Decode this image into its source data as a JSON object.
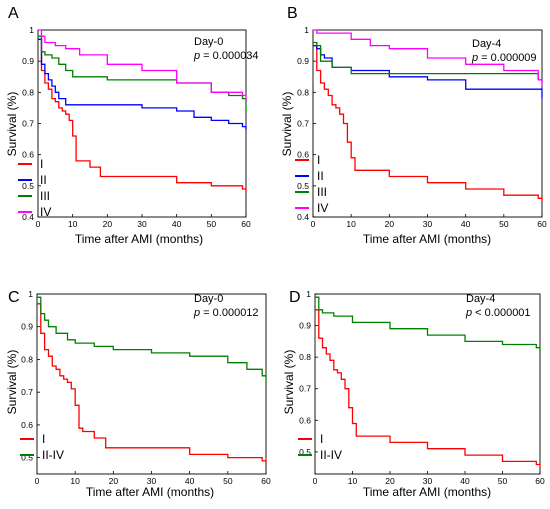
{
  "chart_data": [
    {
      "panel": "A",
      "type": "line",
      "title": "",
      "annotation": {
        "line1": "Day-0",
        "p_prefix": "p",
        "p_value": " = 0.000034"
      },
      "xlabel": "Time after AMI (months)",
      "ylabel": "Survival (%)",
      "xlim": [
        0,
        60
      ],
      "ylim": [
        0.4,
        1.0
      ],
      "xticks": [
        "0",
        "10",
        "20",
        "30",
        "40",
        "50",
        "60"
      ],
      "yticks": [
        "0.4",
        "0.5",
        "0.6",
        "0.7",
        "0.8",
        "0.9",
        "1"
      ],
      "legend_position": "bottom-left",
      "series": [
        {
          "name": "I",
          "color": "#ff0000",
          "x": [
            0,
            1,
            2,
            3,
            4,
            5,
            6,
            7,
            8,
            9,
            10,
            11,
            12,
            15,
            18,
            20,
            30,
            40,
            50,
            59,
            60
          ],
          "y": [
            0.97,
            0.87,
            0.83,
            0.81,
            0.78,
            0.77,
            0.75,
            0.74,
            0.73,
            0.71,
            0.66,
            0.58,
            0.58,
            0.56,
            0.53,
            0.53,
            0.53,
            0.51,
            0.5,
            0.49,
            0.48
          ]
        },
        {
          "name": "II",
          "color": "#0000ff",
          "x": [
            0,
            1,
            2,
            3,
            4,
            5,
            6,
            8,
            20,
            30,
            40,
            45,
            50,
            55,
            59,
            60
          ],
          "y": [
            0.97,
            0.89,
            0.86,
            0.84,
            0.82,
            0.8,
            0.78,
            0.76,
            0.76,
            0.75,
            0.74,
            0.72,
            0.71,
            0.7,
            0.69,
            0.68
          ]
        },
        {
          "name": "III",
          "color": "#008000",
          "x": [
            0,
            1,
            2,
            4,
            6,
            8,
            10,
            15,
            20,
            30,
            40,
            50,
            55,
            59,
            60
          ],
          "y": [
            0.98,
            0.93,
            0.92,
            0.91,
            0.89,
            0.87,
            0.85,
            0.85,
            0.84,
            0.84,
            0.83,
            0.8,
            0.79,
            0.78,
            0.74
          ]
        },
        {
          "name": "IV",
          "color": "#ff00ff",
          "x": [
            0,
            1,
            2,
            5,
            8,
            12,
            20,
            30,
            40,
            50,
            59,
            60
          ],
          "y": [
            1.0,
            0.98,
            0.96,
            0.95,
            0.94,
            0.92,
            0.89,
            0.87,
            0.83,
            0.8,
            0.79,
            0.77
          ]
        }
      ]
    },
    {
      "panel": "B",
      "type": "line",
      "title": "",
      "annotation": {
        "line1": "Day-4",
        "p_prefix": "p",
        "p_value": " = 0.000009"
      },
      "xlabel": "Time after AMI (months)",
      "ylabel": "Survival (%)",
      "xlim": [
        0,
        60
      ],
      "ylim": [
        0.4,
        1.0
      ],
      "xticks": [
        "0",
        "10",
        "20",
        "30",
        "40",
        "50",
        "60"
      ],
      "yticks": [
        "0.4",
        "0.5",
        "0.6",
        "0.7",
        "0.8",
        "0.9",
        "1"
      ],
      "legend_position": "bottom-left",
      "series": [
        {
          "name": "I",
          "color": "#ff0000",
          "x": [
            0,
            1,
            2,
            3,
            4,
            5,
            6,
            7,
            8,
            9,
            10,
            11,
            12,
            20,
            30,
            40,
            50,
            59,
            60
          ],
          "y": [
            0.95,
            0.87,
            0.83,
            0.81,
            0.79,
            0.76,
            0.75,
            0.73,
            0.7,
            0.64,
            0.59,
            0.55,
            0.55,
            0.53,
            0.51,
            0.49,
            0.47,
            0.46,
            0.45
          ]
        },
        {
          "name": "II",
          "color": "#0000ff",
          "x": [
            0,
            1,
            2,
            3,
            5,
            10,
            20,
            30,
            40,
            50,
            59,
            60
          ],
          "y": [
            0.95,
            0.94,
            0.92,
            0.91,
            0.88,
            0.87,
            0.85,
            0.84,
            0.81,
            0.81,
            0.81,
            0.78
          ]
        },
        {
          "name": "III",
          "color": "#008000",
          "x": [
            0,
            1,
            2,
            5,
            10,
            20,
            30,
            40,
            50,
            59,
            60
          ],
          "y": [
            0.96,
            0.95,
            0.9,
            0.88,
            0.86,
            0.86,
            0.86,
            0.86,
            0.86,
            0.84,
            0.83
          ]
        },
        {
          "name": "IV",
          "color": "#ff00ff",
          "x": [
            0,
            1,
            5,
            10,
            15,
            20,
            30,
            40,
            50,
            59,
            60
          ],
          "y": [
            1.0,
            0.99,
            0.99,
            0.97,
            0.95,
            0.94,
            0.91,
            0.89,
            0.87,
            0.84,
            0.82
          ]
        }
      ]
    },
    {
      "panel": "C",
      "type": "line",
      "title": "",
      "annotation": {
        "line1": "Day-0",
        "p_prefix": "p",
        "p_value": " = 0.000012"
      },
      "xlabel": "Time after AMI (months)",
      "ylabel": "Survival (%)",
      "xlim": [
        0,
        60
      ],
      "ylim": [
        0.45,
        1.0
      ],
      "xticks": [
        "0",
        "10",
        "20",
        "30",
        "40",
        "50",
        "60"
      ],
      "yticks": [
        "0.5",
        "0.6",
        "0.7",
        "0.8",
        "0.9",
        "1"
      ],
      "legend_position": "bottom-left",
      "series": [
        {
          "name": "I",
          "color": "#ff0000",
          "x": [
            0,
            1,
            2,
            3,
            4,
            5,
            6,
            7,
            8,
            9,
            10,
            11,
            12,
            15,
            18,
            20,
            30,
            40,
            50,
            59,
            60
          ],
          "y": [
            0.97,
            0.88,
            0.83,
            0.81,
            0.78,
            0.77,
            0.75,
            0.74,
            0.73,
            0.71,
            0.66,
            0.59,
            0.58,
            0.56,
            0.53,
            0.53,
            0.53,
            0.51,
            0.5,
            0.49,
            0.48
          ]
        },
        {
          "name": "II-IV",
          "color": "#008000",
          "x": [
            0,
            1,
            2,
            3,
            5,
            8,
            10,
            15,
            20,
            30,
            40,
            50,
            55,
            59,
            60
          ],
          "y": [
            0.99,
            0.94,
            0.92,
            0.9,
            0.88,
            0.86,
            0.85,
            0.84,
            0.83,
            0.82,
            0.81,
            0.79,
            0.77,
            0.75,
            0.73
          ]
        }
      ]
    },
    {
      "panel": "D",
      "type": "line",
      "title": "",
      "annotation": {
        "line1": "Day-4",
        "p_prefix": "p",
        "p_value": " < 0.000001"
      },
      "xlabel": "Time after AMI (months)",
      "ylabel": "Survival (%)",
      "xlim": [
        0,
        60
      ],
      "ylim": [
        0.43,
        1.0
      ],
      "xticks": [
        "0",
        "10",
        "20",
        "30",
        "40",
        "50",
        "60"
      ],
      "yticks": [
        "0.5",
        "0.6",
        "0.7",
        "0.8",
        "0.9",
        "1"
      ],
      "legend_position": "bottom-left",
      "series": [
        {
          "name": "I",
          "color": "#ff0000",
          "x": [
            0,
            1,
            2,
            3,
            4,
            5,
            6,
            7,
            8,
            9,
            10,
            11,
            12,
            20,
            30,
            40,
            50,
            59,
            60
          ],
          "y": [
            0.95,
            0.86,
            0.83,
            0.81,
            0.79,
            0.76,
            0.75,
            0.73,
            0.7,
            0.64,
            0.59,
            0.55,
            0.55,
            0.53,
            0.51,
            0.49,
            0.47,
            0.46,
            0.45
          ]
        },
        {
          "name": "II-IV",
          "color": "#008000",
          "x": [
            0,
            1,
            2,
            5,
            10,
            20,
            30,
            40,
            50,
            59,
            60
          ],
          "y": [
            0.99,
            0.95,
            0.94,
            0.93,
            0.91,
            0.89,
            0.87,
            0.85,
            0.84,
            0.83,
            0.81
          ]
        }
      ]
    }
  ]
}
